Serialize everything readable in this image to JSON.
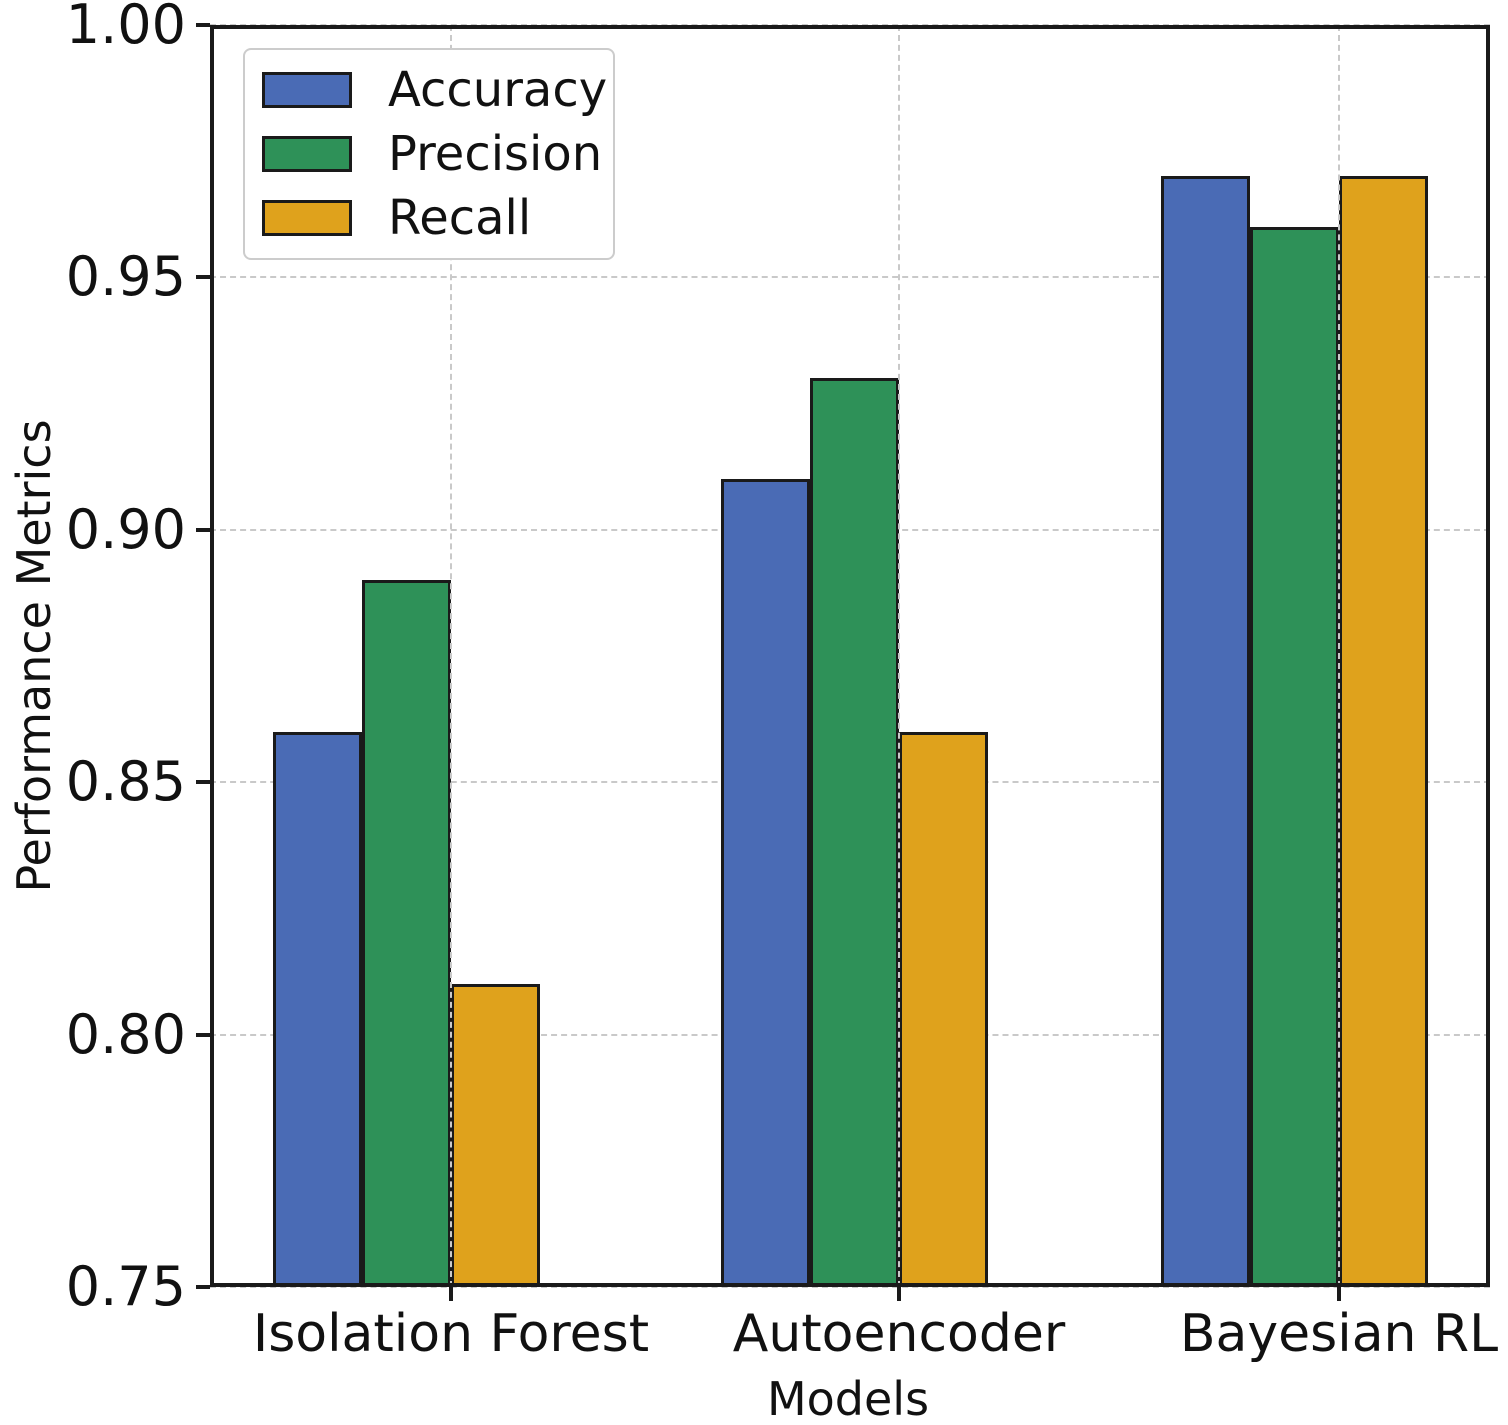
{
  "chart_data": {
    "type": "bar",
    "title": "",
    "xlabel": "Models",
    "ylabel": "Performance Metrics",
    "categories": [
      "Isolation Forest",
      "Autoencoder",
      "Bayesian RL"
    ],
    "series": [
      {
        "name": "Accuracy",
        "color": "#4a6bb5",
        "values": [
          0.86,
          0.91,
          0.97
        ]
      },
      {
        "name": "Precision",
        "color": "#2e9158",
        "values": [
          0.89,
          0.93,
          0.96
        ]
      },
      {
        "name": "Recall",
        "color": "#dfa21c",
        "values": [
          0.81,
          0.86,
          0.97
        ]
      }
    ],
    "ylim": [
      0.75,
      1.0
    ],
    "yticks": [
      0.75,
      0.8,
      0.85,
      0.9,
      0.95,
      1.0
    ],
    "ytick_labels": [
      "0.75",
      "0.80",
      "0.85",
      "0.90",
      "0.95",
      "1.00"
    ],
    "grid": "dashed, both axes, light gray",
    "legend_position": "upper left",
    "bar_edge_color": "#1a1a1a",
    "grid_color": "#c9c9c9"
  }
}
